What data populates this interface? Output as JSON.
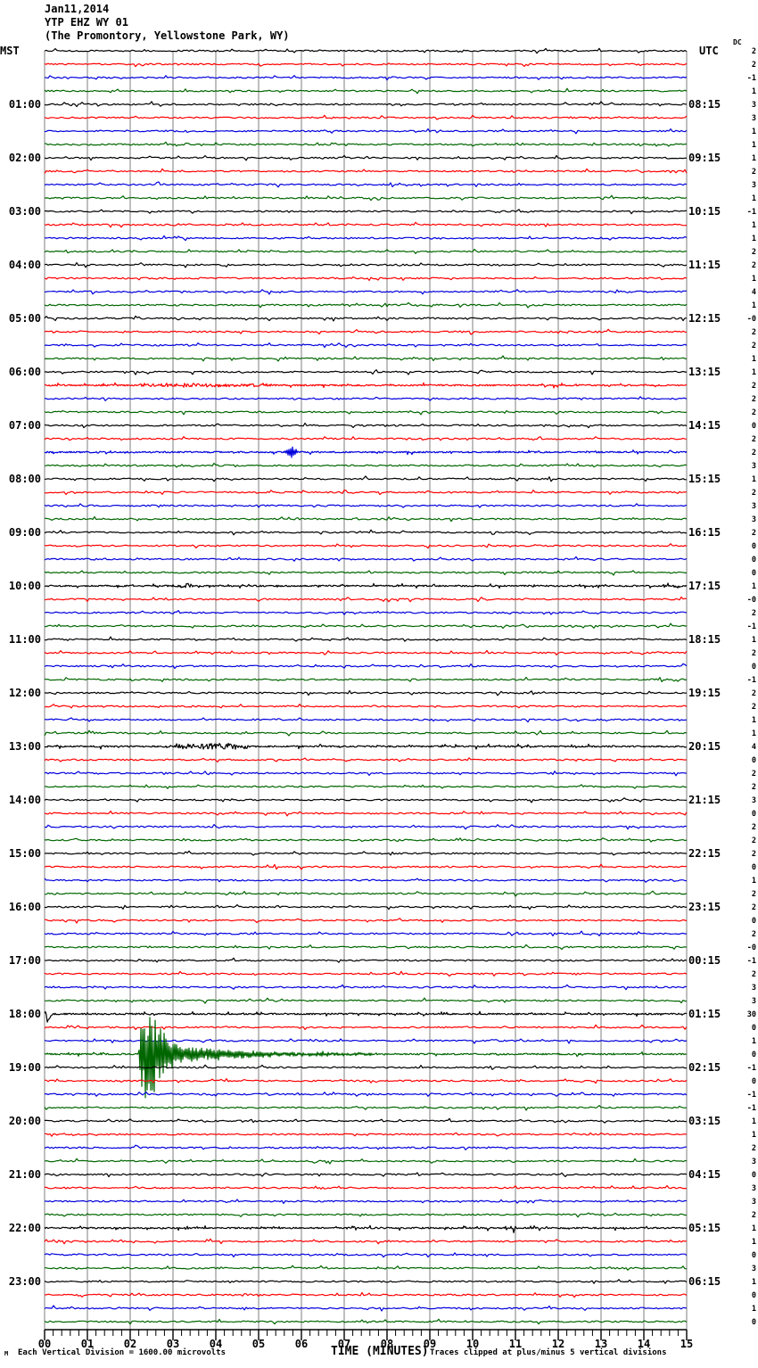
{
  "header": {
    "date": "Jan11,2014",
    "station": "YTP EHZ WY 01",
    "location": "(The Promontory, Yellowstone Park, WY)",
    "left_tz": "MST",
    "right_tz": "UTC",
    "dc_label": "DC"
  },
  "footer": {
    "corner_mark": "M",
    "scale_note": "Each Vertical Division = 1600.00 microvolts",
    "xaxis_title": "TIME (MINUTES)",
    "clip_note": "Traces clipped at plus/minus 5 vertical divisions"
  },
  "chart_data": {
    "type": "line",
    "subtype": "helicorder-seismogram",
    "station": "YTP EHZ WY 01",
    "date": "Jan11,2014",
    "minutes_per_line": 15,
    "rows_per_hour": 4,
    "n_rows": 96,
    "x_axis": {
      "label": "TIME (MINUTES)",
      "min": 0,
      "max": 15,
      "major_tick": 1,
      "minor_tick": 0.2,
      "tick_labels": [
        "00",
        "01",
        "02",
        "03",
        "04",
        "05",
        "06",
        "07",
        "08",
        "09",
        "10",
        "11",
        "12",
        "13",
        "14",
        "15"
      ]
    },
    "trace_color_cycle": [
      "#000000",
      "#ff0000",
      "#0000dd",
      "#006600"
    ],
    "grid_color": "#7f7f7f",
    "left_hour_labels": [
      "01:00",
      "02:00",
      "03:00",
      "04:00",
      "05:00",
      "06:00",
      "07:00",
      "08:00",
      "09:00",
      "10:00",
      "11:00",
      "12:00",
      "13:00",
      "14:00",
      "15:00",
      "16:00",
      "17:00",
      "18:00",
      "19:00",
      "20:00",
      "21:00",
      "22:00",
      "23:00"
    ],
    "right_hour_labels": [
      "08:15",
      "09:15",
      "10:15",
      "11:15",
      "12:15",
      "13:15",
      "14:15",
      "15:15",
      "16:15",
      "17:15",
      "18:15",
      "19:15",
      "20:15",
      "21:15",
      "22:15",
      "23:15",
      "00:15",
      "01:15",
      "02:15",
      "03:15",
      "04:15",
      "05:15",
      "06:15"
    ],
    "dc_offsets": [
      "2",
      "2",
      "-1",
      "1",
      "3",
      "3",
      "1",
      "1",
      "1",
      "2",
      "3",
      "1",
      "-1",
      "1",
      "1",
      "2",
      "2",
      "1",
      "4",
      "1",
      "-0",
      "2",
      "2",
      "1",
      "1",
      "2",
      "2",
      "2",
      "0",
      "2",
      "2",
      "3",
      "1",
      "2",
      "3",
      "3",
      "2",
      "0",
      "0",
      "0",
      "1",
      "-0",
      "2",
      "-1",
      "1",
      "2",
      "0",
      "-1",
      "2",
      "2",
      "1",
      "1",
      "4",
      "0",
      "2",
      "2",
      "3",
      "0",
      "2",
      "2",
      "2",
      "0",
      "1",
      "2",
      "2",
      "0",
      "2",
      "-0",
      "-1",
      "2",
      "3",
      "3",
      "30",
      "0",
      "1",
      "0",
      "-1",
      "0",
      "-1",
      "-1",
      "1",
      "1",
      "2",
      "3",
      "0",
      "3",
      "3",
      "2",
      "1",
      "1",
      "0",
      "3",
      "1",
      "0",
      "1",
      "0"
    ],
    "events": [
      {
        "row": 25,
        "kind": "noise",
        "m0": 2.1,
        "m1": 5.4,
        "amp": 1.7,
        "note": "elevated noise on 06:15 MST red trace"
      },
      {
        "row": 30,
        "kind": "spike",
        "m0": 5.6,
        "m1": 5.95,
        "amp": 8,
        "note": "small event on 07:30 MST blue trace"
      },
      {
        "row": 40,
        "kind": "noise",
        "m0": 3.0,
        "m1": 3.55,
        "amp": 2.6,
        "note": "noise burst on 10:00 MST trace"
      },
      {
        "row": 52,
        "kind": "noise",
        "m0": 3.0,
        "m1": 4.8,
        "amp": 3.2,
        "note": "noise burst on 13:00 MST trace"
      },
      {
        "row": 72,
        "kind": "shape",
        "points": [
          [
            0,
            0
          ],
          [
            0.03,
            3
          ],
          [
            0.06,
            -9
          ],
          [
            0.12,
            -4
          ],
          [
            0.2,
            0
          ]
        ],
        "note": "pen-start glitch at 18:00 MST"
      },
      {
        "row": 75,
        "kind": "earthquake",
        "envelope": [
          [
            2.19,
            0
          ],
          [
            2.23,
            30
          ],
          [
            2.35,
            45
          ],
          [
            2.6,
            38
          ],
          [
            2.9,
            16
          ],
          [
            3.3,
            8
          ],
          [
            4.2,
            4.5
          ],
          [
            5.5,
            2.2
          ],
          [
            7.5,
            1
          ],
          [
            8.2,
            0
          ]
        ],
        "note": "earthquake on 18:45 MST trace, clipped at +/-5 divisions"
      },
      {
        "row": 88,
        "kind": "shape",
        "points": [
          [
            10.93,
            0
          ],
          [
            10.96,
            -5
          ],
          [
            10.99,
            4
          ],
          [
            11.02,
            0
          ]
        ],
        "note": "telemetry glitch on 22:00 MST trace"
      }
    ]
  }
}
